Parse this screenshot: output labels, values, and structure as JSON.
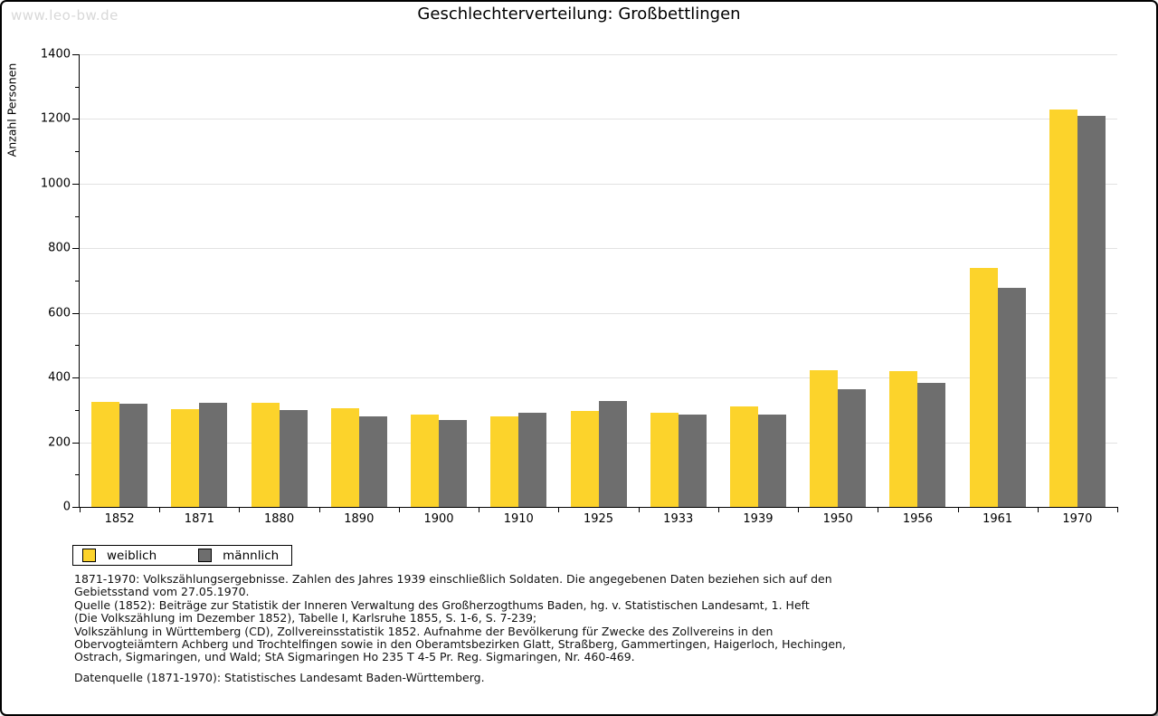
{
  "watermark": "www.leo-bw.de",
  "chart_data": {
    "type": "bar",
    "title": "Geschlechterverteilung: Großbettlingen",
    "xlabel": "",
    "ylabel": "Anzahl Personen",
    "ylim": [
      0,
      1400
    ],
    "ytick_step": 200,
    "yminor_step": 100,
    "grid": true,
    "legend_position": "bottom-left",
    "categories": [
      "1852",
      "1871",
      "1880",
      "1890",
      "1900",
      "1910",
      "1925",
      "1933",
      "1939",
      "1950",
      "1956",
      "1961",
      "1970"
    ],
    "series": [
      {
        "name": "weiblich",
        "color": "#fcd32b",
        "values": [
          325,
          303,
          322,
          305,
          287,
          279,
          298,
          292,
          311,
          422,
          419,
          740,
          1229
        ]
      },
      {
        "name": "männlich",
        "color": "#6e6e6e",
        "values": [
          318,
          322,
          300,
          280,
          269,
          292,
          329,
          286,
          286,
          364,
          383,
          678,
          1209
        ]
      }
    ]
  },
  "footnotes": {
    "lines": [
      "1871-1970: Volkszählungsergebnisse. Zahlen des Jahres 1939 einschließlich Soldaten. Die angegebenen Daten beziehen sich auf den",
      "Gebietsstand vom 27.05.1970.",
      "Quelle (1852): Beiträge zur Statistik der Inneren Verwaltung des Großherzogthums Baden, hg. v. Statistischen Landesamt, 1. Heft",
      "(Die Volkszählung im Dezember 1852), Tabelle I, Karlsruhe 1855, S. 1-6, S. 7-239;",
      "Volkszählung in Württemberg (CD), Zollvereinsstatistik 1852. Aufnahme der Bevölkerung für Zwecke des Zollvereins in den",
      "Obervogteiämtern Achberg und Trochtelfingen sowie in den Oberamtsbezirken Glatt, Straßberg, Gammertingen, Haigerloch, Hechingen,",
      "Ostrach, Sigmaringen, und Wald; StA Sigmaringen Ho 235 T 4-5 Pr. Reg. Sigmaringen, Nr. 460-469."
    ],
    "datasource": "Datenquelle (1871-1970): Statistisches Landesamt Baden-Württemberg."
  },
  "colors": {
    "female_bar": "#fcd32b",
    "male_bar": "#6e6e6e",
    "gridline": "#e2e2e2",
    "axis": "#000000",
    "watermark": "#d8d8d8",
    "page_border": "#000000"
  }
}
